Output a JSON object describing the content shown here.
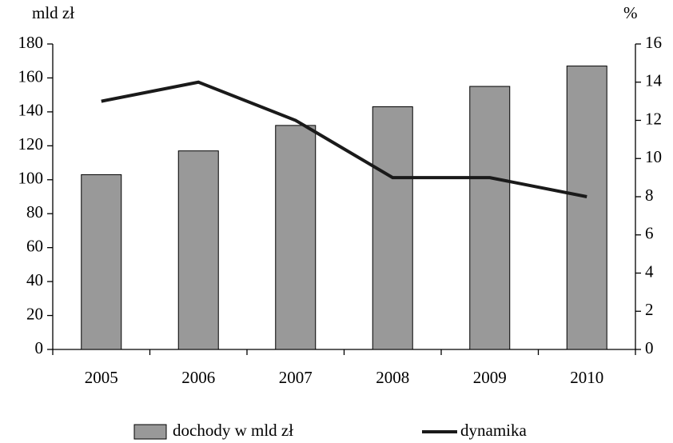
{
  "chart_data": {
    "type": "bar",
    "y_label": "mld zł",
    "y2_label": "%",
    "categories": [
      "2005",
      "2006",
      "2007",
      "2008",
      "2009",
      "2010"
    ],
    "series": [
      {
        "name": "dochody w mld zł",
        "type": "bar",
        "color": "#999999",
        "values": [
          103,
          117,
          132,
          143,
          155,
          167
        ]
      },
      {
        "name": "dynamika",
        "type": "line",
        "axis": "y2",
        "color": "#1a1a1a",
        "values": [
          13,
          14,
          12,
          9,
          9,
          8
        ]
      }
    ],
    "ylim": [
      0,
      180
    ],
    "yticks": [
      0,
      20,
      40,
      60,
      80,
      100,
      120,
      140,
      160,
      180
    ],
    "y2lim": [
      0,
      16
    ],
    "y2ticks": [
      0,
      2,
      4,
      6,
      8,
      10,
      12,
      14,
      16
    ],
    "legend": "bottom"
  }
}
